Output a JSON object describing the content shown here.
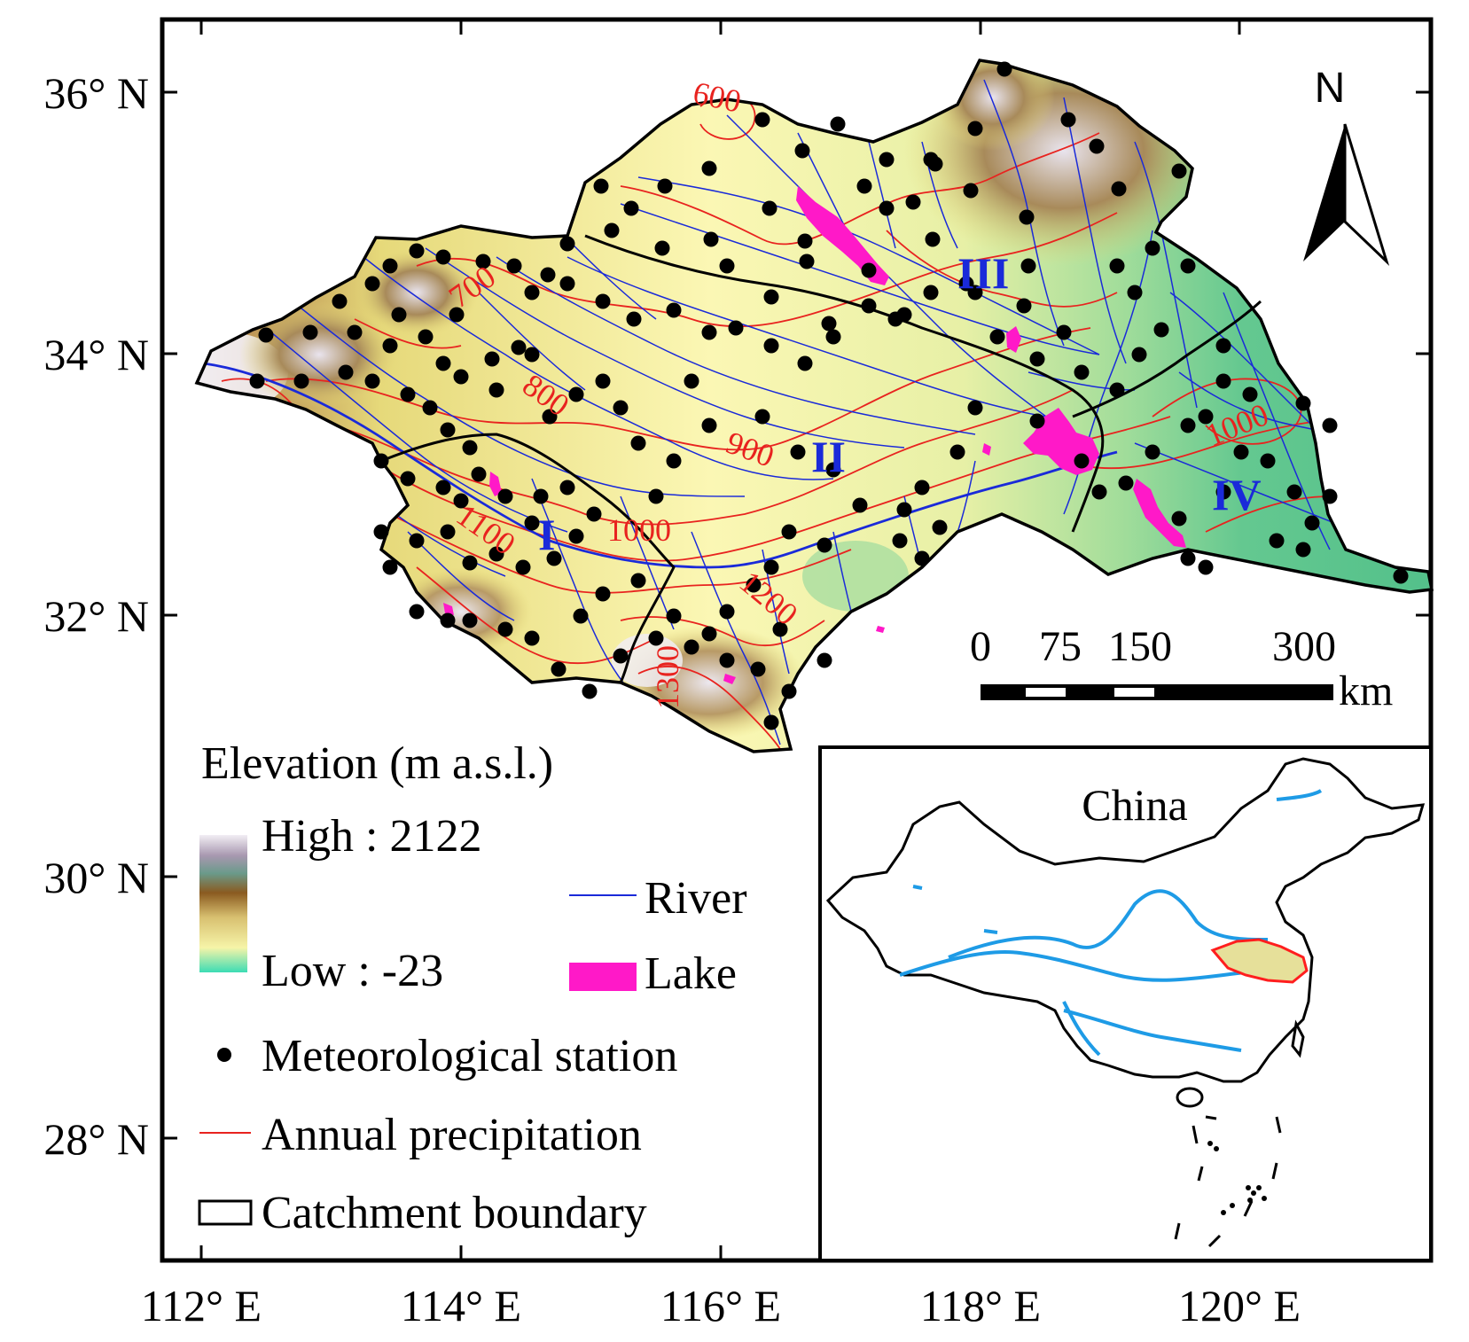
{
  "map": {
    "lat_labels": [
      "36° N",
      "34° N",
      "32° N",
      "30° N",
      "28° N"
    ],
    "lon_labels": [
      "112° E",
      "114° E",
      "116° E",
      "118° E",
      "120° E"
    ],
    "isohyet_labels": [
      "600",
      "700",
      "800",
      "900",
      "1000",
      "1100",
      "1200",
      "1300",
      "1000"
    ],
    "zone_labels": [
      "I",
      "II",
      "III",
      "IV"
    ],
    "north_arrow_label": "N",
    "scale_bar": {
      "ticks": [
        "0",
        "75",
        "150",
        "300"
      ],
      "unit": "km"
    },
    "colors": {
      "catchment_boundary": "#000000",
      "river": "#1a2ad9",
      "lake": "#ff19c8",
      "isohyet": "#e8231f",
      "elevation_low": "#3cdcb4",
      "elevation_mid": "#8a5a20",
      "elevation_high": "#f2eef4"
    }
  },
  "legend": {
    "title": "Elevation (m a.s.l.)",
    "high": "High : 2122",
    "low": "Low : -23",
    "river": "River",
    "lake": "Lake",
    "station": "Meteorological station",
    "precip": "Annual precipitation",
    "boundary": "Catchment boundary"
  },
  "inset": {
    "title": "China",
    "colors": {
      "outline": "#000000",
      "rivers": "#1e9be6",
      "study_area_outline": "#ff1e1e"
    }
  }
}
